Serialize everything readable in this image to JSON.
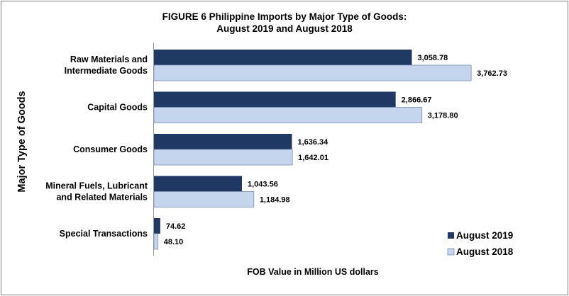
{
  "chart_data": {
    "type": "bar",
    "orientation": "horizontal",
    "title": [
      "FIGURE 6  Philippine Imports by Major Type of Goods:",
      "August 2019 and August 2018"
    ],
    "xlabel": "FOB Value in Million US dollars",
    "ylabel": "Major Type of Goods",
    "categories": [
      [
        "Raw Materials and",
        "Intermediate Goods"
      ],
      [
        "Capital Goods"
      ],
      [
        "Consumer Goods"
      ],
      [
        "Mineral Fuels, Lubricant",
        "and Related Materials"
      ],
      [
        "Special Transactions"
      ]
    ],
    "series": [
      {
        "name": "August 2019",
        "color": "#1f3864",
        "values": [
          3058.78,
          2866.67,
          1636.34,
          1043.56,
          74.62
        ],
        "labels": [
          "3,058.78",
          "2,866.67",
          "1,636.34",
          "1,043.56",
          "74.62"
        ]
      },
      {
        "name": "August 2018",
        "color": "#c5d5ee",
        "values": [
          3762.73,
          3178.8,
          1642.01,
          1184.98,
          48.1
        ],
        "labels": [
          "3,762.73",
          "3,178.80",
          "1,642.01",
          "1,184.98",
          "48.10"
        ]
      }
    ],
    "xlim": [
      0,
      4300
    ],
    "grid": false,
    "legend": "bottom-right"
  }
}
